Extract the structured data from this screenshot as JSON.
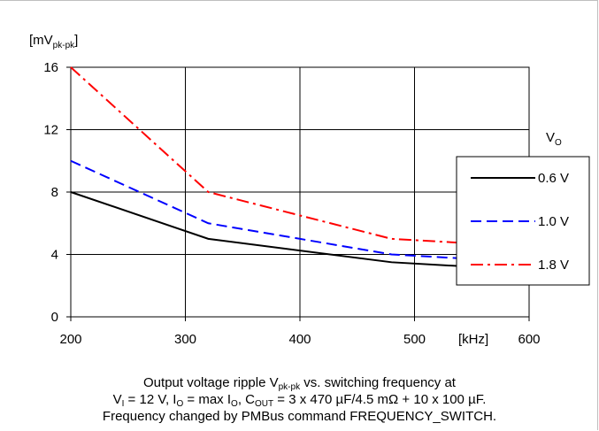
{
  "chart_data": {
    "type": "line",
    "y_unit": {
      "main": "[mV",
      "sub": "pk-pk",
      "close": "]"
    },
    "x_unit": "[kHz]",
    "xlim": [
      200,
      600
    ],
    "ylim": [
      0,
      16
    ],
    "x_ticks": [
      "200",
      "300",
      "400",
      "500",
      "600"
    ],
    "y_ticks": [
      "0",
      "4",
      "8",
      "12",
      "16"
    ],
    "grid": true,
    "legend_title": {
      "main": "V",
      "sub": "O"
    },
    "legend_position": "right",
    "series": [
      {
        "name": "0.6 V",
        "color": "#000000",
        "dash": "solid",
        "x": [
          200,
          320,
          480,
          600
        ],
        "y": [
          8.0,
          5.0,
          3.5,
          3.0
        ]
      },
      {
        "name": "1.0 V",
        "color": "#0000ff",
        "dash": "dashed",
        "x": [
          200,
          320,
          480,
          600
        ],
        "y": [
          10.0,
          6.0,
          4.0,
          3.5
        ]
      },
      {
        "name": "1.8 V",
        "color": "#ff0000",
        "dash": "dashdot",
        "x": [
          200,
          320,
          480,
          600
        ],
        "y": [
          16.0,
          8.0,
          5.0,
          4.5
        ]
      }
    ]
  },
  "caption": {
    "line1_a": "Output voltage ripple V",
    "line1_sub": "pk-pk",
    "line1_b": " vs. switching frequency at",
    "line2_a": "V",
    "line2_sub1": "I",
    "line2_b": " = 12 V, I",
    "line2_sub2": "O",
    "line2_c": " = max I",
    "line2_sub3": "O",
    "line2_d": ", C",
    "line2_sub4": "OUT",
    "line2_e": " = 3 x 470 µF/4.5 mΩ + 10 x 100 µF.",
    "line3": "Frequency changed by PMBus command FREQUENCY_SWITCH."
  }
}
